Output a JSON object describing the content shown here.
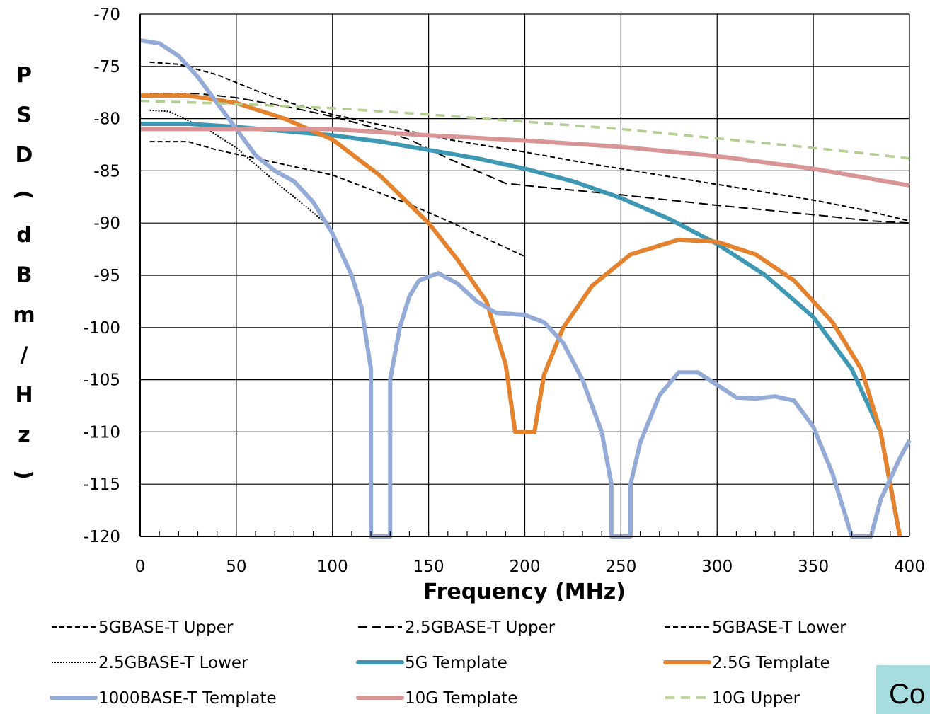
{
  "chart_data": {
    "type": "line",
    "title": "",
    "xlabel": "Frequency (MHz)",
    "ylabel": "PSD (dBm/Hz)",
    "xlim": [
      0,
      400
    ],
    "ylim": [
      -120,
      -70
    ],
    "xticks": [
      0,
      50,
      100,
      150,
      200,
      250,
      300,
      350,
      400
    ],
    "yticks": [
      -70,
      -75,
      -80,
      -85,
      -90,
      -95,
      -100,
      -105,
      -110,
      -115,
      -120
    ],
    "grid": true,
    "legend_position": "bottom",
    "series": [
      {
        "name": "5GBASE-T Upper",
        "style": "short-dash-black",
        "x": [
          5,
          20,
          40,
          60,
          80,
          100,
          120,
          140,
          160,
          180,
          200,
          230,
          260,
          290,
          320,
          350,
          375,
          400
        ],
        "y": [
          -74.6,
          -74.8,
          -75.8,
          -77.3,
          -78.6,
          -79.6,
          -80.4,
          -81.2,
          -82.0,
          -82.6,
          -83.2,
          -84.2,
          -85.1,
          -86.0,
          -86.9,
          -87.8,
          -88.7,
          -89.8
        ]
      },
      {
        "name": "2.5GBASE-T Upper",
        "style": "long-dash-black",
        "x": [
          5,
          30,
          50,
          80,
          100,
          120,
          140,
          160,
          180,
          190,
          200,
          250,
          300,
          350,
          380,
          400
        ],
        "y": [
          -77.6,
          -77.6,
          -78.0,
          -79.0,
          -79.8,
          -80.8,
          -82.0,
          -83.8,
          -85.4,
          -86.2,
          -86.4,
          -87.3,
          -88.3,
          -89.2,
          -89.8,
          -90.0
        ]
      },
      {
        "name": "5GBASE-T Lower",
        "style": "short-dash-black",
        "x": [
          5,
          25,
          40,
          60,
          80,
          100,
          120,
          140,
          160,
          180,
          200
        ],
        "y": [
          -82.2,
          -82.2,
          -83.0,
          -83.8,
          -84.6,
          -85.4,
          -86.8,
          -88.2,
          -89.8,
          -91.5,
          -93.2
        ]
      },
      {
        "name": "2.5GBASE-T Lower",
        "style": "dotted-black",
        "x": [
          5,
          15,
          25,
          35,
          50,
          60,
          70,
          80,
          90,
          100
        ],
        "y": [
          -79.2,
          -79.3,
          -80.2,
          -81.0,
          -82.8,
          -84.4,
          -86.0,
          -87.5,
          -89.0,
          -90.6
        ]
      },
      {
        "name": "5G Template",
        "style": "thick-teal",
        "color": "#3e98b3",
        "x": [
          0,
          25,
          50,
          75,
          100,
          125,
          150,
          175,
          200,
          225,
          250,
          275,
          300,
          325,
          350,
          370,
          385,
          395
        ],
        "y": [
          -80.5,
          -80.5,
          -80.8,
          -81.2,
          -81.6,
          -82.2,
          -83.0,
          -83.8,
          -84.8,
          -86.0,
          -87.6,
          -89.6,
          -92.0,
          -95.0,
          -99.0,
          -104.0,
          -110.0,
          -120.0
        ]
      },
      {
        "name": "2.5G Template",
        "style": "thick-orange",
        "color": "#e4822e",
        "x": [
          0,
          25,
          50,
          75,
          100,
          125,
          150,
          165,
          180,
          190,
          195,
          205,
          210,
          220,
          235,
          255,
          280,
          300,
          320,
          340,
          360,
          375,
          385,
          395
        ],
        "y": [
          -77.8,
          -77.8,
          -78.5,
          -80.0,
          -82.0,
          -85.5,
          -90.0,
          -93.5,
          -97.5,
          -103.5,
          -110.0,
          -110.0,
          -104.5,
          -100.0,
          -96.0,
          -93.0,
          -91.6,
          -91.8,
          -93.0,
          -95.5,
          -99.5,
          -104.0,
          -110.0,
          -120.0
        ]
      },
      {
        "name": "1000BASE-T Template",
        "style": "thick-lightblue",
        "color": "#94abd8",
        "x": [
          0,
          10,
          20,
          30,
          40,
          50,
          60,
          70,
          80,
          90,
          100,
          110,
          115,
          120,
          120,
          130,
          130,
          135,
          140,
          145,
          155,
          165,
          175,
          185,
          200,
          210,
          220,
          230,
          240,
          245,
          245,
          255,
          255,
          260,
          270,
          280,
          290,
          300,
          310,
          320,
          330,
          340,
          350,
          360,
          370,
          370,
          380,
          385,
          395,
          400
        ],
        "y": [
          -72.5,
          -72.8,
          -74.0,
          -76.0,
          -78.5,
          -81.0,
          -83.5,
          -85.0,
          -86.0,
          -88.0,
          -91.0,
          -95.0,
          -98.0,
          -104.0,
          -120.0,
          -120.0,
          -105.0,
          -100.0,
          -97.0,
          -95.5,
          -94.8,
          -95.8,
          -97.5,
          -98.6,
          -98.8,
          -99.5,
          -101.5,
          -105.0,
          -110.0,
          -115.0,
          -120.0,
          -120.0,
          -115.0,
          -111.0,
          -106.5,
          -104.3,
          -104.3,
          -105.5,
          -106.7,
          -106.8,
          -106.6,
          -107.0,
          -109.5,
          -114.0,
          -120.0,
          -120.0,
          -120.0,
          -116.5,
          -112.5,
          -110.8
        ]
      },
      {
        "name": "10G Template",
        "style": "thick-pink",
        "color": "#d99596",
        "x": [
          0,
          50,
          100,
          150,
          200,
          250,
          300,
          350,
          400
        ],
        "y": [
          -81.0,
          -81.0,
          -81.0,
          -81.6,
          -82.1,
          -82.7,
          -83.6,
          -84.8,
          -86.4
        ]
      },
      {
        "name": "10G Upper",
        "style": "dashed-lightgreen",
        "color": "#b2cf91",
        "x": [
          0,
          50,
          100,
          150,
          200,
          250,
          300,
          350,
          400
        ],
        "y": [
          -78.3,
          -78.6,
          -79.0,
          -79.6,
          -80.3,
          -81.0,
          -81.9,
          -82.8,
          -83.8
        ]
      }
    ]
  },
  "overlay": {
    "cut_text": "Co",
    "box_color": "#a8dde0"
  }
}
